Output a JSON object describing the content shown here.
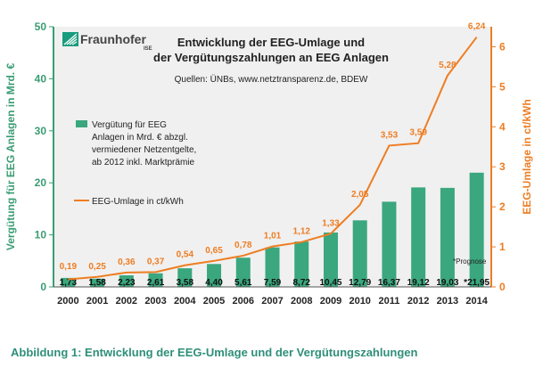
{
  "caption": "Abbildung 1: Entwicklung der EEG-Umlage und der Vergütungszahlungen",
  "colors": {
    "plot_bg": "#f0f0f0",
    "bars": "#3aa77e",
    "line": "#ee7d22",
    "left_axis": "#3a9c73",
    "right_axis": "#ee7d22",
    "caption": "#2f8f7a",
    "logo_green": "#179c7d"
  },
  "logo": {
    "name": "Fraunhofer",
    "sub": "ISE",
    "icon": "fraunhofer-logo-icon"
  },
  "chart_data": {
    "type": "bar+line",
    "title": [
      "Entwicklung der EEG-Umlage und",
      "der Vergütungszahlungen an EEG Anlagen"
    ],
    "sources": "Quellen: ÜNBs, www.netztransparenz.de, BDEW",
    "categories": [
      "2000",
      "2001",
      "2002",
      "2003",
      "2004",
      "2005",
      "2006",
      "2007",
      "2008",
      "2009",
      "2010",
      "2011",
      "2012",
      "2013",
      "2014"
    ],
    "series": [
      {
        "name": "Vergütung für EEG Anlagen in Mrd. € abzgl. vermiedener Netzentgelte, ab 2012 inkl. Marktprämie",
        "legend_lines": [
          "Vergütung für EEG",
          "Anlagen in Mrd. € abzgl.",
          "vermiedener Netzentgelte,",
          "ab 2012 inkl. Marktprämie"
        ],
        "type": "bar",
        "axis": "left",
        "values": [
          1.73,
          1.58,
          2.23,
          2.61,
          3.58,
          4.4,
          5.61,
          7.59,
          8.72,
          10.45,
          12.79,
          16.37,
          19.12,
          19.03,
          21.95
        ],
        "labels": [
          "1,73",
          "1,58",
          "2,23",
          "2,61",
          "3,58",
          "4,40",
          "5,61",
          "7,59",
          "8,72",
          "10,45",
          "12,79",
          "16,37",
          "19,12",
          "19,03",
          "*21,95"
        ]
      },
      {
        "name": "EEG-Umlage in ct/kWh",
        "legend_lines": [
          "EEG-Umlage in ct/kWh"
        ],
        "type": "line",
        "axis": "right",
        "values": [
          0.19,
          0.25,
          0.36,
          0.37,
          0.54,
          0.65,
          0.78,
          1.01,
          1.12,
          1.33,
          2.05,
          3.53,
          3.59,
          5.28,
          6.24
        ],
        "labels": [
          "0,19",
          "0,25",
          "0,36",
          "0,37",
          "0,54",
          "0,65",
          "0,78",
          "1,01",
          "1,12",
          "1,33",
          "2,05",
          "3,53",
          "3,59",
          "5,28",
          "6,24"
        ]
      }
    ],
    "ylabel_left": "Vergütung für EEG Anlagen in Mrd. €",
    "ylabel_right": "EEG-Umlage in ct/kWh",
    "ylim_left": [
      0,
      50
    ],
    "yticks_left": [
      0,
      10,
      20,
      30,
      40,
      50
    ],
    "ylim_right": [
      0,
      6.5
    ],
    "yticks_right": [
      0,
      1,
      2,
      3,
      4,
      5,
      6
    ],
    "footnote": "*Prognose",
    "grid": false
  }
}
